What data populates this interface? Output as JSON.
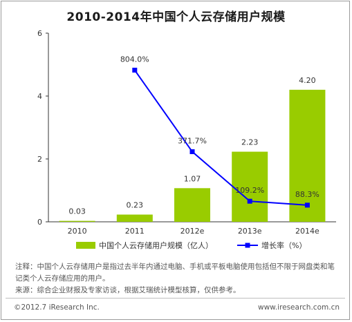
{
  "header": {
    "title": "2010-2014年中国个人云存储用户规模"
  },
  "chart_data": {
    "type": "bar",
    "categories": [
      "2010",
      "2011",
      "2012e",
      "2013e",
      "2014e"
    ],
    "series": [
      {
        "name": "中国个人云存储用户规模（亿人）",
        "type": "bar",
        "values": [
          0.03,
          0.23,
          1.07,
          2.23,
          4.2
        ],
        "labels": [
          "0.03",
          "0.23",
          "1.07",
          "2.23",
          "4.20"
        ],
        "color": "#99cc00"
      },
      {
        "name": "增长率（%）",
        "type": "line",
        "values": [
          null,
          804.0,
          371.7,
          109.2,
          88.3
        ],
        "labels": [
          "",
          "804.0%",
          "371.7%",
          "109.2%",
          "88.3%"
        ],
        "color": "#0000ff"
      }
    ],
    "yticks": [
      "0",
      "2",
      "4",
      "6"
    ],
    "ylim": [
      0,
      6
    ],
    "line_ylim": [
      0,
      1000
    ],
    "grid": false,
    "legend_position": "bottom"
  },
  "notes": {
    "note": "注释：中国个人云存储用户是指过去半年内通过电脑、手机或平板电脑使用包括但不限于网盘类和笔记类个人云存储应用的用户。",
    "source": "来源：综合企业财报及专家访谈，根据艾瑞统计模型核算，仅供参考。"
  },
  "footer": {
    "copyright": "©2012.7 iResearch Inc.",
    "site": "www.iresearch.com.cn"
  }
}
